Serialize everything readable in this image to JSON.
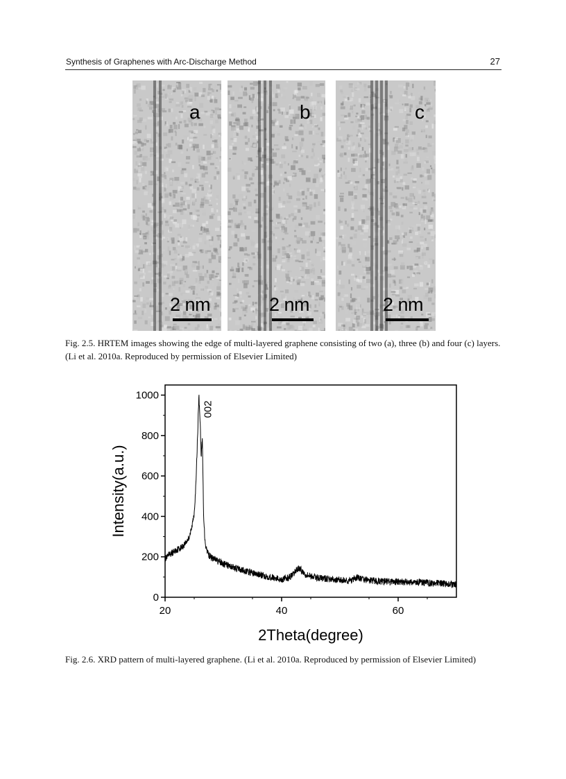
{
  "header": {
    "running_title": "Synthesis of Graphenes with Arc-Discharge Method",
    "page_number": "27"
  },
  "figure_2_5": {
    "panels": [
      {
        "label": "a",
        "scale_bar": "2 nm",
        "layers": 2
      },
      {
        "label": "b",
        "scale_bar": "2 nm",
        "layers": 3
      },
      {
        "label": "c",
        "scale_bar": "2 nm",
        "layers": 4
      }
    ],
    "caption": "Fig. 2.5. HRTEM images showing the edge of multi-layered graphene consisting of two (a), three (b) and four (c) layers. (Li et al. 2010a. Reproduced by permission of Elsevier Limited)"
  },
  "figure_2_6": {
    "caption": "Fig. 2.6. XRD pattern of multi-layered graphene. (Li et al. 2010a. Reproduced by permission of Elsevier Limited)",
    "chart_data": {
      "type": "line",
      "xlabel": "2Theta(degree)",
      "ylabel": "Intensity(a.u.)",
      "xlim": [
        20,
        70
      ],
      "ylim": [
        0,
        1050
      ],
      "xticks": [
        "20",
        "40",
        "60"
      ],
      "yticks": [
        "0",
        "200",
        "400",
        "600",
        "800",
        "1000"
      ],
      "grid": false,
      "annotations": [
        {
          "text": "002",
          "x": 26.5,
          "y": 930
        }
      ],
      "series": [
        {
          "x": [
            20,
            21,
            22,
            23,
            24,
            24.5,
            25,
            25.3,
            25.6,
            25.8,
            26.0,
            26.2,
            26.4,
            26.6,
            26.8,
            27,
            27.5,
            28,
            29,
            30,
            32,
            34,
            36,
            38,
            40,
            41,
            42,
            42.5,
            43,
            43.5,
            44,
            45,
            46,
            48,
            50,
            52,
            53,
            54,
            56,
            58,
            60,
            62,
            64,
            66,
            68,
            70
          ],
          "y": [
            190,
            215,
            235,
            250,
            290,
            330,
            420,
            560,
            820,
            1000,
            880,
            700,
            780,
            420,
            300,
            250,
            210,
            195,
            180,
            165,
            145,
            128,
            112,
            100,
            88,
            95,
            110,
            135,
            145,
            130,
            115,
            105,
            98,
            90,
            85,
            82,
            98,
            88,
            80,
            78,
            76,
            75,
            73,
            70,
            67,
            62
          ]
        }
      ]
    }
  }
}
